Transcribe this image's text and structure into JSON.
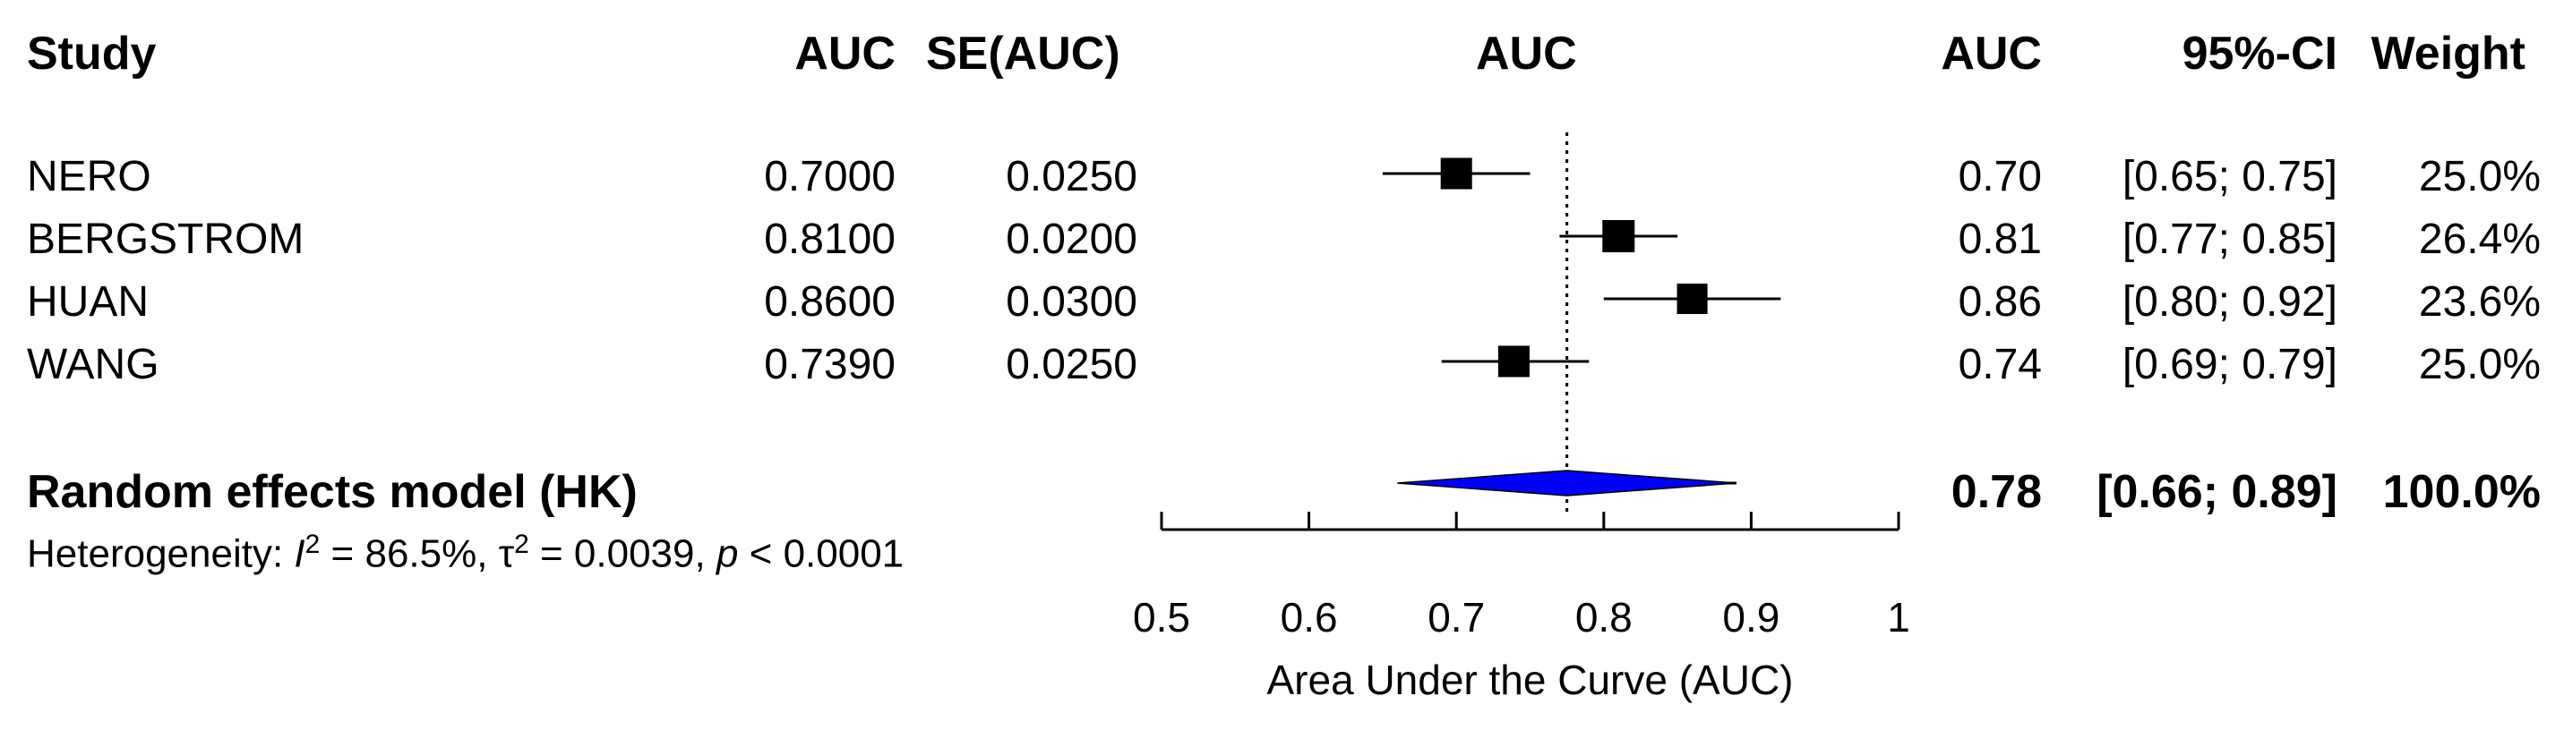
{
  "chart_data": {
    "type": "table",
    "plot_type": "forest",
    "columns": {
      "study": "Study",
      "auc": "AUC",
      "se": "SE(AUC)",
      "plot": "AUC",
      "est": "AUC",
      "ci": "95%-CI",
      "weight": "Weight"
    },
    "studies": [
      {
        "name": "NERO",
        "auc": "0.7000",
        "se": "0.0250",
        "est": "0.70",
        "ci": "[0.65; 0.75]",
        "weight": "25.0%",
        "value": 0.7,
        "lower": 0.65,
        "upper": 0.75,
        "w": 25.0
      },
      {
        "name": "BERGSTROM",
        "auc": "0.8100",
        "se": "0.0200",
        "est": "0.81",
        "ci": "[0.77; 0.85]",
        "weight": "26.4%",
        "value": 0.81,
        "lower": 0.77,
        "upper": 0.85,
        "w": 26.4
      },
      {
        "name": "HUAN",
        "auc": "0.8600",
        "se": "0.0300",
        "est": "0.86",
        "ci": "[0.80; 0.92]",
        "weight": "23.6%",
        "value": 0.86,
        "lower": 0.8,
        "upper": 0.92,
        "w": 23.6
      },
      {
        "name": "WANG",
        "auc": "0.7390",
        "se": "0.0250",
        "est": "0.74",
        "ci": "[0.69; 0.79]",
        "weight": "25.0%",
        "value": 0.739,
        "lower": 0.69,
        "upper": 0.79,
        "w": 25.0
      }
    ],
    "pooled": {
      "name": "Random effects model (HK)",
      "est": "0.78",
      "ci": "[0.66; 0.89]",
      "weight": "100.0%",
      "value": 0.775,
      "lower": 0.66,
      "upper": 0.89,
      "pred_lower": 0.68,
      "pred_upper": 0.89
    },
    "heterogeneity": {
      "prefix": "Heterogeneity: ",
      "i2_symbol": "I",
      "i2_sup": "2",
      "i2_value": " = 86.5%, ",
      "tau_symbol": "τ",
      "tau_sup": "2",
      "tau_value": " = 0.0039, ",
      "p_symbol": "p",
      "p_value": " < 0.0001"
    },
    "xlabel": "Area Under the Curve (AUC)",
    "xlim": [
      0.5,
      1.0
    ],
    "xticks": [
      0.5,
      0.6,
      0.7,
      0.8,
      0.9,
      1.0
    ],
    "xtick_labels": [
      "0.5",
      "0.6",
      "0.7",
      "0.8",
      "0.9",
      "1"
    ],
    "reference_line": 0.775,
    "colors": {
      "square": "#000000",
      "diamond": "#0000ff",
      "line": "#000000"
    }
  }
}
